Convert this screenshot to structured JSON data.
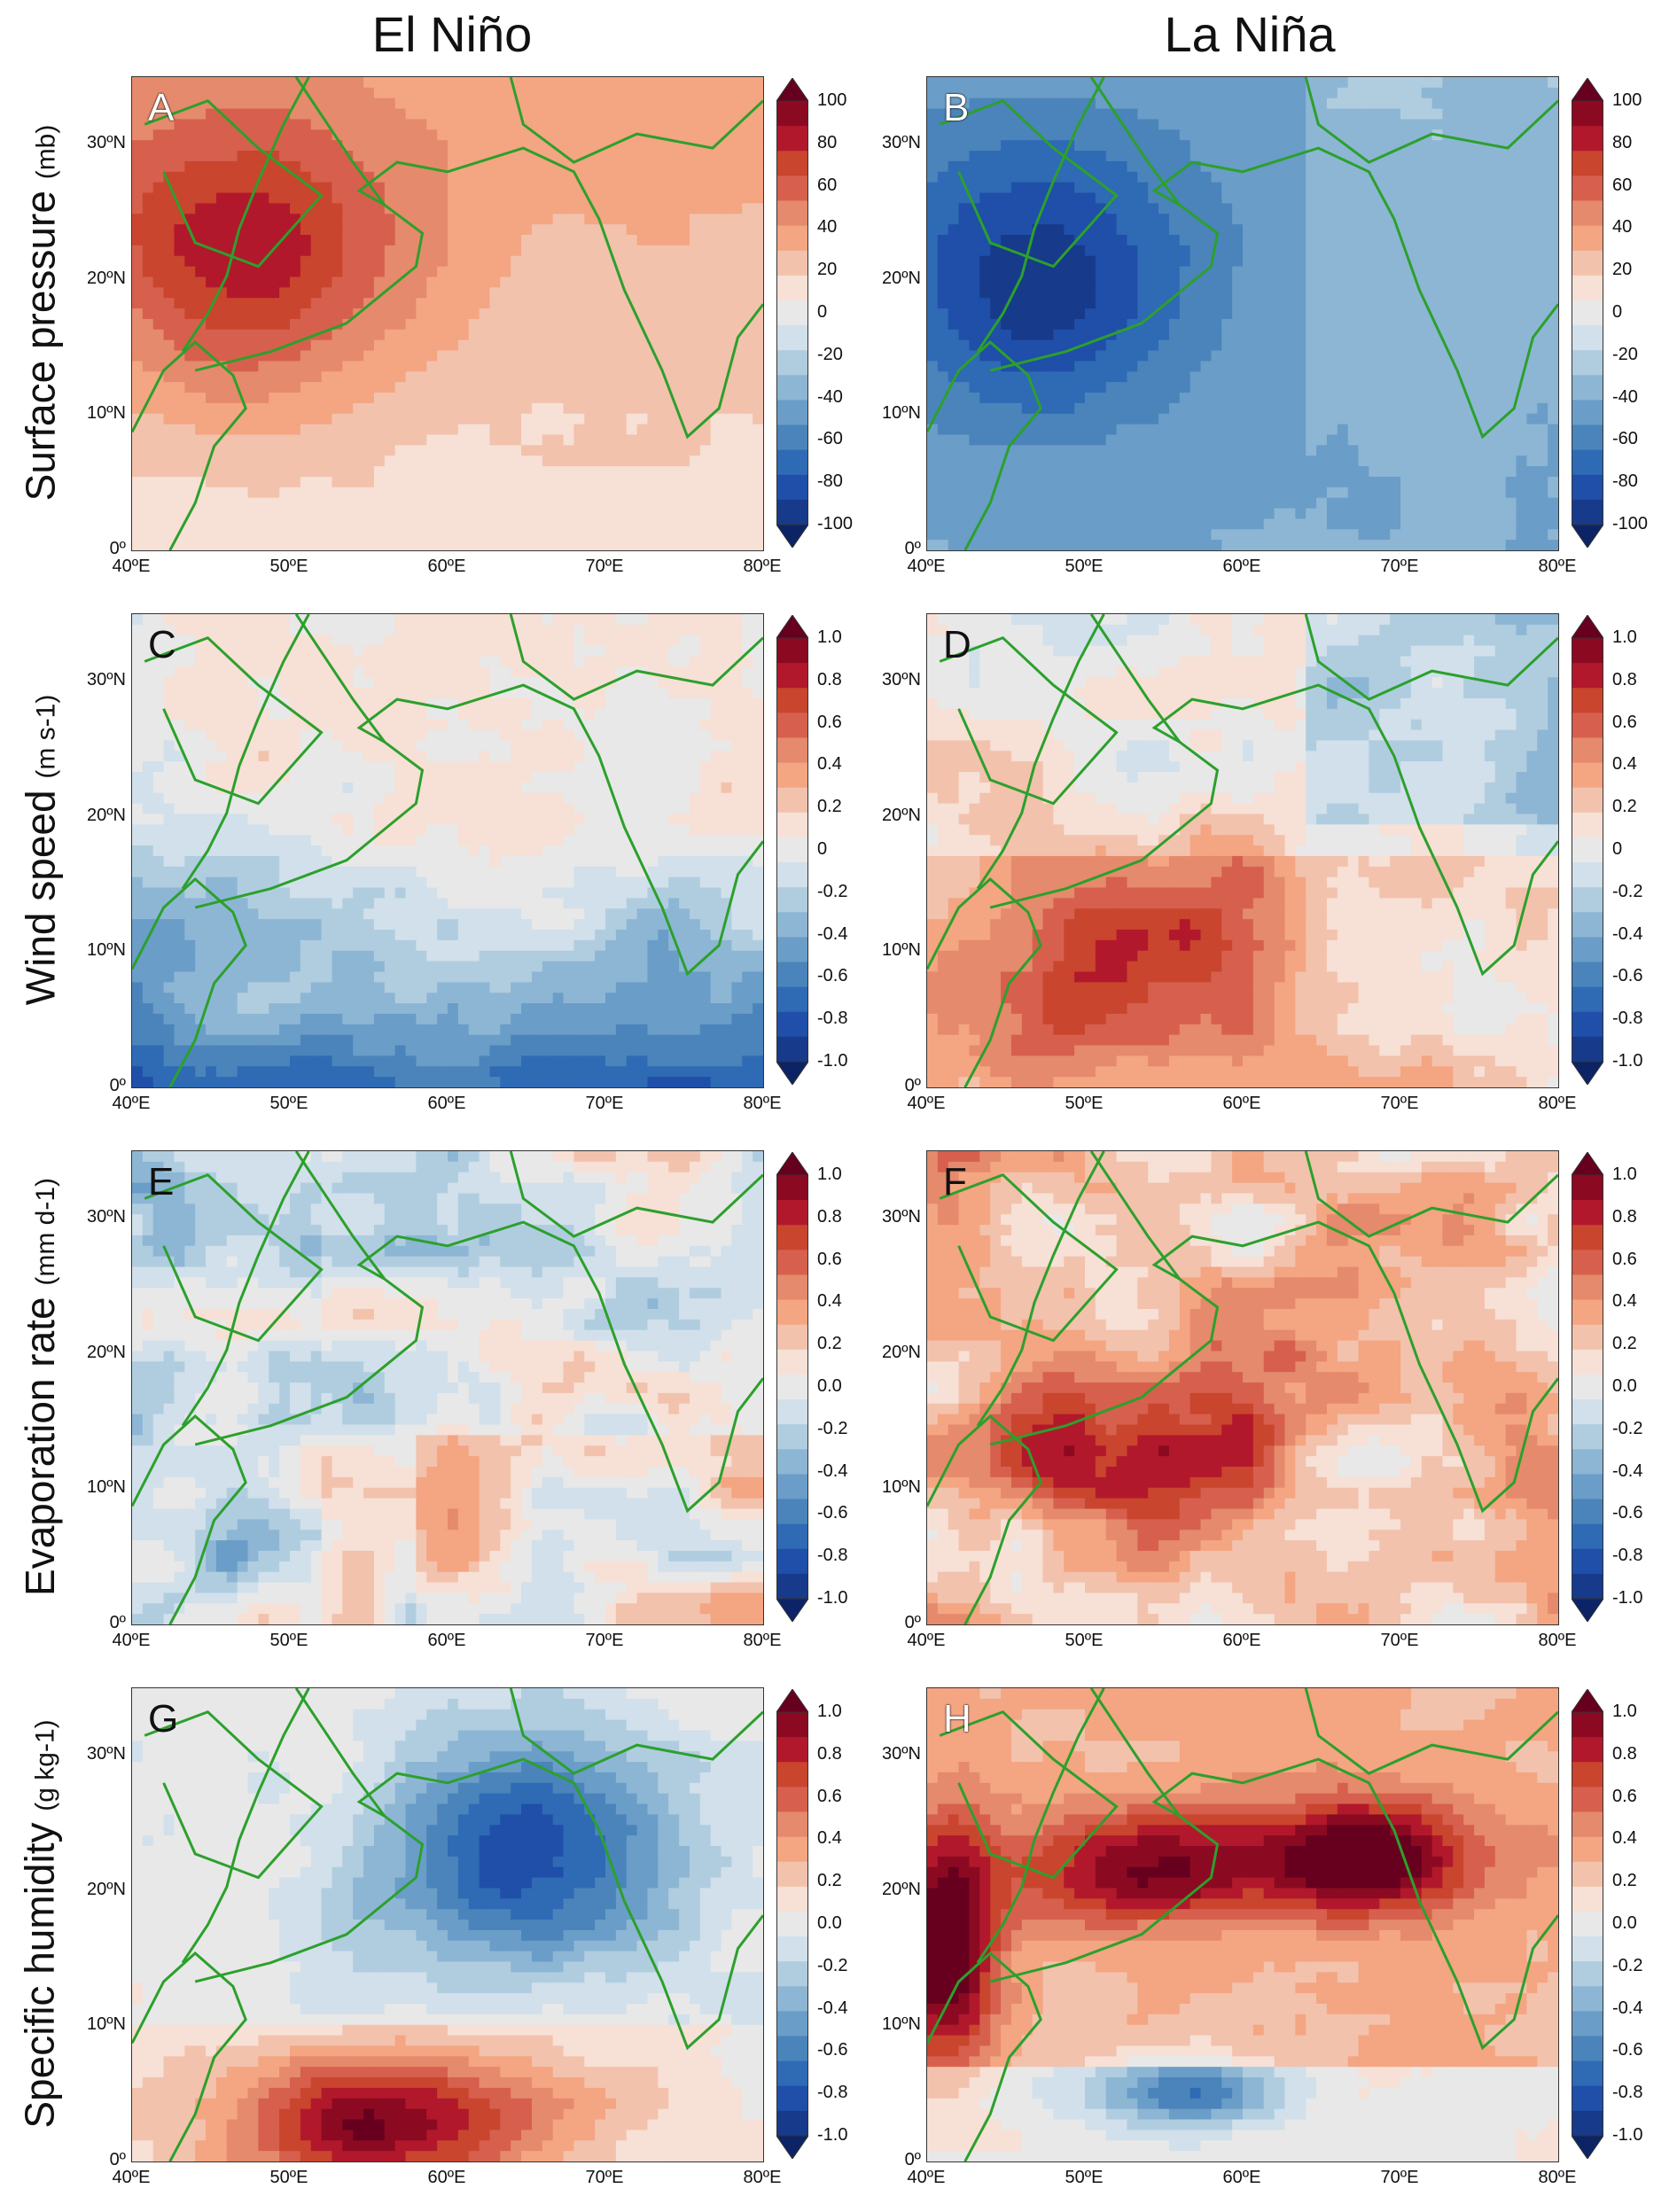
{
  "column_titles": {
    "left": "El Niño",
    "right": "La Niña"
  },
  "row_titles": [
    {
      "main": "Surface pressure",
      "unit": "(mb)"
    },
    {
      "main": "Wind speed",
      "unit": "(m s-1)"
    },
    {
      "main": "Evaporation rate",
      "unit": "(mm d-1)"
    },
    {
      "main": "Specific humidity",
      "unit": "(g kg-1)"
    }
  ],
  "x_ticks": [
    "40ºE",
    "50ºE",
    "60ºE",
    "70ºE",
    "80ºE"
  ],
  "y_ticks": [
    "0º",
    "10ºN",
    "20ºN",
    "30ºN"
  ],
  "panels": [
    {
      "label": "A",
      "phase": "El Niño",
      "variable": "Surface pressure",
      "pattern": "positive-north",
      "colorbar": [
        "100",
        "80",
        "60",
        "40",
        "20",
        "0",
        "-20",
        "-40",
        "-60",
        "-80",
        "-100"
      ]
    },
    {
      "label": "B",
      "phase": "La Niña",
      "variable": "Surface pressure",
      "pattern": "negative-north",
      "colorbar": [
        "100",
        "80",
        "60",
        "40",
        "20",
        "0",
        "-20",
        "-40",
        "-60",
        "-80",
        "-100"
      ]
    },
    {
      "label": "C",
      "phase": "El Niño",
      "variable": "Wind speed",
      "pattern": "negative-south",
      "colorbar": [
        "1.0",
        "0.8",
        "0.6",
        "0.4",
        "0.2",
        "0",
        "-0.2",
        "-0.4",
        "-0.6",
        "-0.8",
        "-1.0"
      ]
    },
    {
      "label": "D",
      "phase": "La Niña",
      "variable": "Wind speed",
      "pattern": "positive-south",
      "colorbar": [
        "1.0",
        "0.8",
        "0.6",
        "0.4",
        "0.2",
        "0",
        "-0.2",
        "-0.4",
        "-0.6",
        "-0.8",
        "-1.0"
      ]
    },
    {
      "label": "E",
      "phase": "El Niño",
      "variable": "Evaporation rate",
      "pattern": "mixed-weak",
      "colorbar": [
        "1.0",
        "0.8",
        "0.6",
        "0.4",
        "0.2",
        "0.0",
        "-0.2",
        "-0.4",
        "-0.6",
        "-0.8",
        "-1.0"
      ]
    },
    {
      "label": "F",
      "phase": "La Niña",
      "variable": "Evaporation rate",
      "pattern": "positive-mixed",
      "colorbar": [
        "1.0",
        "0.8",
        "0.6",
        "0.4",
        "0.2",
        "0.0",
        "-0.2",
        "-0.4",
        "-0.6",
        "-0.8",
        "-1.0"
      ]
    },
    {
      "label": "G",
      "phase": "El Niño",
      "variable": "Specific humidity",
      "pattern": "dipole-neg-north",
      "colorbar": [
        "1.0",
        "0.8",
        "0.6",
        "0.4",
        "0.2",
        "0.0",
        "-0.2",
        "-0.4",
        "-0.6",
        "-0.8",
        "-1.0"
      ]
    },
    {
      "label": "H",
      "phase": "La Niña",
      "variable": "Specific humidity",
      "pattern": "dipole-pos-north",
      "colorbar": [
        "1.0",
        "0.8",
        "0.6",
        "0.4",
        "0.2",
        "0.0",
        "-0.2",
        "-0.4",
        "-0.6",
        "-0.8",
        "-1.0"
      ]
    }
  ],
  "colors": {
    "palette": [
      "#67001f",
      "#8b0a22",
      "#b2182b",
      "#c9452e",
      "#d6604d",
      "#e58a6c",
      "#f4a582",
      "#f2c2ad",
      "#f7e0d5",
      "#e8e8e8",
      "#d1e0ea",
      "#b0cde0",
      "#8db6d4",
      "#6a9dc7",
      "#4a84ba",
      "#2f6ab5",
      "#1f4fa8",
      "#173a8a",
      "#0c2466"
    ],
    "coast": "#2ca02c"
  }
}
